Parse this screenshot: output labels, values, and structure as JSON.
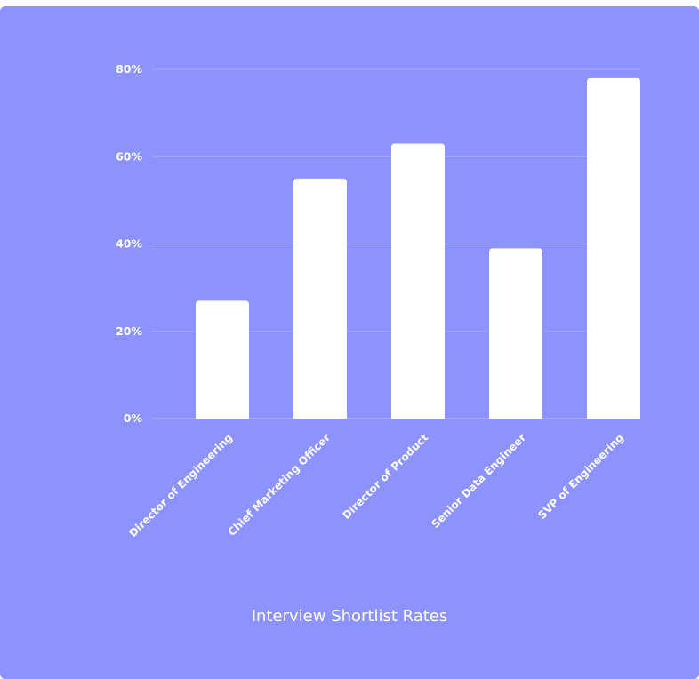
{
  "chart_data": {
    "type": "bar",
    "title": "Interview Shortlist Rates",
    "xlabel": "",
    "ylabel": "",
    "categories": [
      "Director of Engineering",
      "Chief Marketing Officer",
      "Director of Product",
      "Senior Data Engineer",
      "SVP of Engineering"
    ],
    "values": [
      27,
      55,
      63,
      39,
      78
    ],
    "y_ticks": [
      "0%",
      "20%",
      "40%",
      "60%",
      "80%"
    ],
    "ylim": [
      0,
      80
    ],
    "grid": true,
    "legend": "none",
    "colors": {
      "background": "#8c93ff",
      "bar": "#ffffff",
      "grid": "#a5abff",
      "text": "#ffffff"
    }
  }
}
